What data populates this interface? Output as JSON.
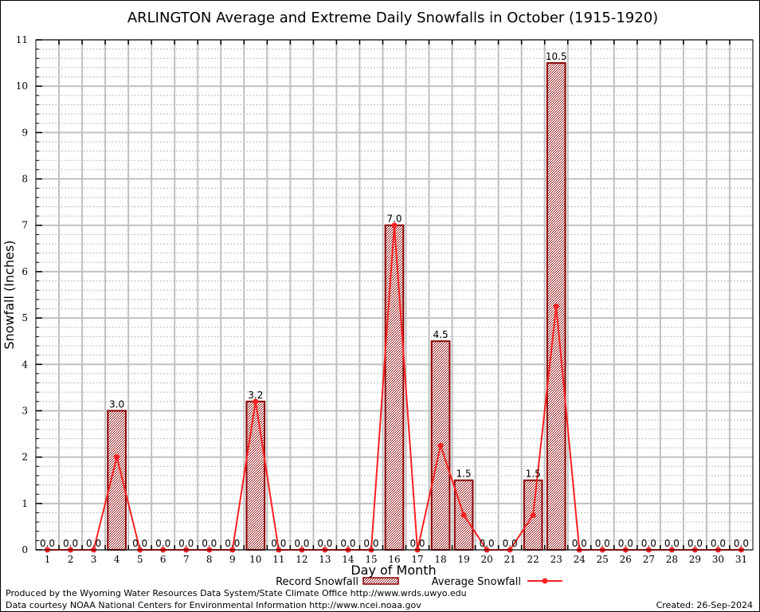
{
  "chart_data": {
    "type": "bar",
    "title": "ARLINGTON Average and Extreme Daily Snowfalls in October (1915-1920)",
    "xlabel": "Day of Month",
    "ylabel": "Snowfall (Inches)",
    "ylim": [
      0,
      11
    ],
    "yticks": [
      "0",
      "1",
      "2",
      "3",
      "4",
      "5",
      "6",
      "7",
      "8",
      "9",
      "10",
      "11"
    ],
    "categories": [
      "1",
      "2",
      "3",
      "4",
      "5",
      "6",
      "7",
      "8",
      "9",
      "10",
      "11",
      "12",
      "13",
      "14",
      "15",
      "16",
      "17",
      "18",
      "19",
      "20",
      "21",
      "22",
      "23",
      "24",
      "25",
      "26",
      "27",
      "28",
      "29",
      "30",
      "31"
    ],
    "series": [
      {
        "name": "Record Snowfall",
        "type": "bar",
        "values": [
          0,
          0,
          0,
          3.0,
          0,
          0,
          0,
          0,
          0,
          3.2,
          0,
          0,
          0,
          0,
          0,
          7.0,
          0,
          4.5,
          1.5,
          0,
          0,
          1.5,
          10.5,
          0,
          0,
          0,
          0,
          0,
          0,
          0,
          0
        ],
        "labels": [
          "0.0",
          "0.0",
          "0.0",
          "3.0",
          "0.0",
          "0.0",
          "0.0",
          "0.0",
          "0.0",
          "3.2",
          "0.0",
          "0.0",
          "0.0",
          "0.0",
          "0.0",
          "7.0",
          "0.0",
          "4.5",
          "1.5",
          "0.0",
          "0.0",
          "1.5",
          "10.5",
          "0.0",
          "0.0",
          "0.0",
          "0.0",
          "0.0",
          "0.0",
          "0.0",
          "0.0"
        ]
      },
      {
        "name": "Average Snowfall",
        "type": "line",
        "values": [
          0,
          0,
          0,
          2.0,
          0,
          0,
          0,
          0,
          0,
          3.2,
          0,
          0,
          0,
          0,
          0,
          7.0,
          0,
          2.25,
          0.75,
          0,
          0,
          0.75,
          5.25,
          0,
          0,
          0,
          0,
          0,
          0,
          0,
          0
        ]
      }
    ],
    "grid": true,
    "legend": "bottom-center",
    "colors": {
      "bar_fill": "#8b0000",
      "bar_edge": "#8b0000",
      "line": "#ff2020",
      "grid": "#c0c0c0"
    }
  },
  "footer": {
    "produced_by": "Produced by the Wyoming Water Resources Data System/State Climate Office http://www.wrds.uwyo.edu",
    "data_courtesy": "Data courtesy NOAA National Centers for Environmental Information http://www.ncei.noaa.gov",
    "created": "Created:  26-Sep-2024"
  }
}
